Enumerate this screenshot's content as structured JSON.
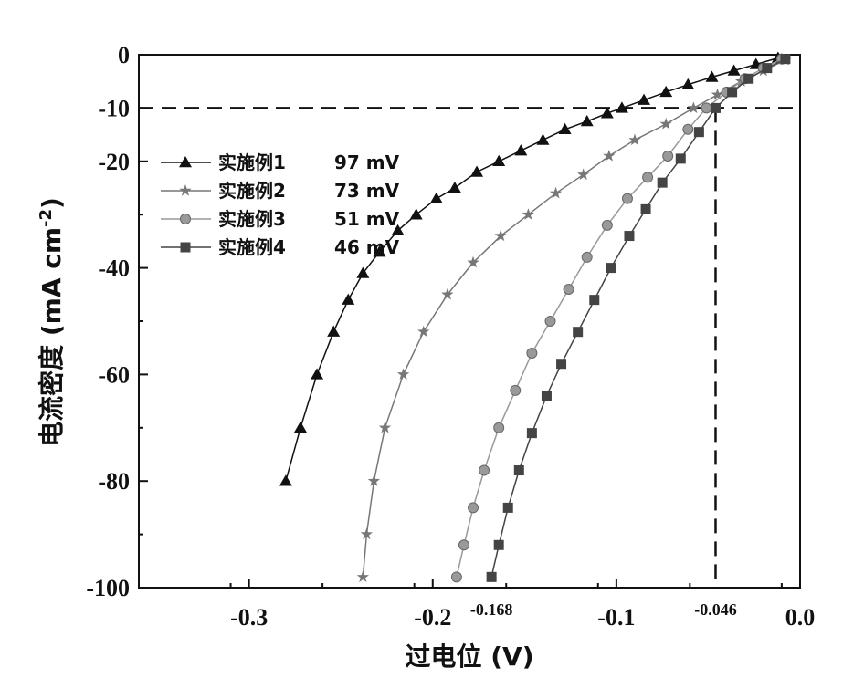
{
  "chart_data": {
    "type": "line",
    "xlabel": "过电位 (V)",
    "ylabel_main": "电流密度 (mA cm",
    "ylabel_sup": "-2",
    "ylabel_close": ")",
    "xlim": [
      -0.36,
      0.0
    ],
    "ylim": [
      -100,
      0
    ],
    "xticks": [
      -0.3,
      -0.2,
      -0.1,
      0.0
    ],
    "xtick_labels": [
      "-0.3",
      "-0.2",
      "-0.1",
      "0.0"
    ],
    "yticks": [
      0,
      -10,
      -20,
      -40,
      -60,
      -80,
      -100
    ],
    "ytick_labels": [
      "0",
      "-10",
      "-20",
      "-40",
      "-60",
      "-80",
      "-100"
    ],
    "reference": {
      "y": -10,
      "x": -0.046,
      "x_label": "-0.046",
      "extra_x": -0.168,
      "extra_x_label": "-0.168"
    },
    "legend_position": "upper-left",
    "series": [
      {
        "name": "实施例1",
        "value_label": "97 mV",
        "marker": "triangle",
        "color": "#111111",
        "x": [
          -0.28,
          -0.272,
          -0.263,
          -0.254,
          -0.246,
          -0.238,
          -0.229,
          -0.219,
          -0.209,
          -0.198,
          -0.188,
          -0.176,
          -0.164,
          -0.152,
          -0.14,
          -0.128,
          -0.116,
          -0.105,
          -0.097,
          -0.085,
          -0.073,
          -0.061,
          -0.048,
          -0.036,
          -0.024,
          -0.012
        ],
        "y": [
          -80,
          -70,
          -60,
          -52,
          -46,
          -41,
          -37,
          -33,
          -30,
          -27,
          -25,
          -22,
          -20,
          -18,
          -16,
          -14,
          -12.5,
          -11,
          -10,
          -8.5,
          -7,
          -5.6,
          -4.2,
          -3,
          -1.8,
          -0.6
        ]
      },
      {
        "name": "实施例2",
        "value_label": "73 mV",
        "marker": "star",
        "color": "#777777",
        "x": [
          -0.238,
          -0.236,
          -0.232,
          -0.226,
          -0.216,
          -0.205,
          -0.192,
          -0.178,
          -0.163,
          -0.148,
          -0.133,
          -0.118,
          -0.104,
          -0.09,
          -0.073,
          -0.058,
          -0.045,
          -0.032,
          -0.02,
          -0.008
        ],
        "y": [
          -98,
          -90,
          -80,
          -70,
          -60,
          -52,
          -45,
          -39,
          -34,
          -30,
          -26,
          -22.5,
          -19,
          -16,
          -13,
          -10,
          -7.5,
          -5,
          -3,
          -1
        ]
      },
      {
        "name": "实施例3",
        "value_label": "51 mV",
        "marker": "circle",
        "color": "#999999",
        "x": [
          -0.187,
          -0.183,
          -0.178,
          -0.172,
          -0.164,
          -0.155,
          -0.146,
          -0.136,
          -0.126,
          -0.116,
          -0.105,
          -0.094,
          -0.083,
          -0.072,
          -0.061,
          -0.051,
          -0.04,
          -0.03,
          -0.02,
          -0.01
        ],
        "y": [
          -98,
          -92,
          -85,
          -78,
          -70,
          -63,
          -56,
          -50,
          -44,
          -38,
          -32,
          -27,
          -23,
          -19,
          -14,
          -10,
          -7,
          -4.5,
          -2.5,
          -0.8
        ]
      },
      {
        "name": "实施例4",
        "value_label": "46 mV",
        "marker": "square",
        "color": "#444444",
        "x": [
          -0.168,
          -0.164,
          -0.159,
          -0.153,
          -0.146,
          -0.138,
          -0.13,
          -0.121,
          -0.112,
          -0.103,
          -0.093,
          -0.084,
          -0.075,
          -0.065,
          -0.055,
          -0.046,
          -0.037,
          -0.028,
          -0.018,
          -0.008
        ],
        "y": [
          -98,
          -92,
          -85,
          -78,
          -71,
          -64,
          -58,
          -52,
          -46,
          -40,
          -34,
          -29,
          -24,
          -19.5,
          -14.5,
          -10,
          -7,
          -4.5,
          -2.5,
          -0.8
        ]
      }
    ]
  }
}
